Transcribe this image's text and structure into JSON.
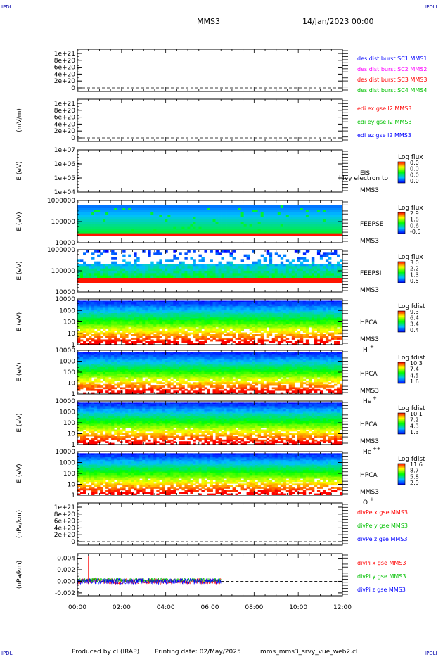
{
  "corner_marks": [
    "IPDLI",
    "IPDLI",
    "IPDLI",
    "IPDLI"
  ],
  "header": {
    "spacecraft": "MMS3",
    "date": "14/Jan/2023 00:00"
  },
  "footer": {
    "produced": "Produced by cl (IRAP)",
    "printing": "Printing date: 02/May/2025",
    "script": "mms_mms3_srvy_vue_web2.cl"
  },
  "time_axis": {
    "labels": [
      "00:00",
      "02:00",
      "04:00",
      "06:00",
      "08:00",
      "10:00",
      "12:00"
    ],
    "range_hours": [
      0,
      12
    ],
    "data_end_hours": 6.5
  },
  "colors": {
    "red": "#ff0000",
    "green": "#00c000",
    "blue": "#0000ff",
    "magenta": "#ff00ff",
    "dashed": "#000000"
  },
  "chart_data": [
    {
      "type": "line",
      "id": "des-dist",
      "ylabel": "",
      "yticks": [
        "1e+21",
        "8e+20",
        "6e+20",
        "4e+20",
        "2e+20",
        "0"
      ],
      "series": [
        {
          "name": "des dist burst SC1 MMS1",
          "color": "#0000ff"
        },
        {
          "name": "des dist burst SC2 MMS2",
          "color": "#ff00ff"
        },
        {
          "name": "des dist burst SC3 MMS3",
          "color": "#ff0000"
        },
        {
          "name": "des dist burst SC4 MMS4",
          "color": "#00c000"
        }
      ],
      "values": []
    },
    {
      "type": "line",
      "id": "edi-e",
      "ylabel": "(mV/m)",
      "yticks": [
        "1e+21",
        "8e+20",
        "6e+20",
        "4e+20",
        "2e+20",
        "0"
      ],
      "series": [
        {
          "name": "edi ex gse l2 MMS3",
          "color": "#ff0000"
        },
        {
          "name": "edi ey gse l2 MMS3",
          "color": "#00c000"
        },
        {
          "name": "edi ez gse l2 MMS3",
          "color": "#0000ff"
        }
      ],
      "values": []
    },
    {
      "type": "heatmap",
      "id": "eis",
      "ylabel": "E (eV)",
      "yticks": [
        "1e+07",
        "1e+06",
        "1e+05",
        "1e+04"
      ],
      "instrument": "EIS",
      "extra": "l lvy electron to",
      "spacecraft": "MMS3",
      "colorbar": {
        "title": "Log flux",
        "ticks": [
          "0.0",
          "0.0",
          "0.0",
          "0.0"
        ]
      }
    },
    {
      "type": "heatmap",
      "id": "feepse",
      "ylabel": "E (eV)",
      "yticks": [
        "1000000",
        "100000",
        "10000"
      ],
      "instrument": "FEEPSE",
      "spacecraft": "MMS3",
      "colorbar": {
        "title": "Log flux",
        "ticks": [
          "2.9",
          "1.8",
          "0.6",
          "-0.5"
        ]
      }
    },
    {
      "type": "heatmap",
      "id": "feepsi",
      "ylabel": "E (eV)",
      "yticks": [
        "1000000",
        "100000",
        "10000"
      ],
      "instrument": "FEEPSI",
      "spacecraft": "MMS3",
      "colorbar": {
        "title": "Log flux",
        "ticks": [
          "3.0",
          "2.2",
          "1.3",
          "0.5"
        ]
      }
    },
    {
      "type": "heatmap",
      "id": "hpca-h",
      "ylabel": "E (eV)",
      "yticks": [
        "10000",
        "1000",
        "100",
        "10",
        "1"
      ],
      "instrument": "HPCA",
      "spacecraft": "MMS3",
      "species": "H",
      "charge": "+",
      "colorbar": {
        "title": "Log fdist",
        "ticks": [
          "9.3",
          "6.4",
          "3.4",
          "0.4"
        ]
      }
    },
    {
      "type": "heatmap",
      "id": "hpca-he",
      "ylabel": "E (eV)",
      "yticks": [
        "10000",
        "1000",
        "100",
        "10",
        "1"
      ],
      "instrument": "HPCA",
      "spacecraft": "MMS3",
      "species": "He",
      "charge": "+",
      "colorbar": {
        "title": "Log fdist",
        "ticks": [
          "10.3",
          "7.4",
          "4.5",
          "1.6"
        ]
      }
    },
    {
      "type": "heatmap",
      "id": "hpca-hepp",
      "ylabel": "E (eV)",
      "yticks": [
        "10000",
        "1000",
        "100",
        "10",
        "1"
      ],
      "instrument": "HPCA",
      "spacecraft": "MMS3",
      "species": "He",
      "charge": "++",
      "colorbar": {
        "title": "Log fdist",
        "ticks": [
          "10.1",
          "7.2",
          "4.3",
          "1.3"
        ]
      }
    },
    {
      "type": "heatmap",
      "id": "hpca-o",
      "ylabel": "E (eV)",
      "yticks": [
        "10000",
        "1000",
        "100",
        "10",
        "1"
      ],
      "instrument": "HPCA",
      "spacecraft": "MMS3",
      "species": "O",
      "charge": "+",
      "colorbar": {
        "title": "Log fdist",
        "ticks": [
          "11.6",
          "8.7",
          "5.8",
          "2.9"
        ]
      }
    },
    {
      "type": "line",
      "id": "divpe",
      "ylabel": "(nPa/km)",
      "yticks": [
        "1e+21",
        "8e+20",
        "6e+20",
        "4e+20",
        "2e+20",
        "0"
      ],
      "series": [
        {
          "name": "divPe x gse MMS3",
          "color": "#ff0000"
        },
        {
          "name": "divPe y gse MMS3",
          "color": "#00c000"
        },
        {
          "name": "divPe z gse MMS3",
          "color": "#0000ff"
        }
      ],
      "values": []
    },
    {
      "type": "line",
      "id": "divpi",
      "ylabel": "(nPa/km)",
      "yticks": [
        "0.004",
        "0.002",
        "0.000",
        "-0.002"
      ],
      "ylim": [
        -0.0025,
        0.0048
      ],
      "series": [
        {
          "name": "divPi x gse MMS3",
          "color": "#ff0000",
          "spike": {
            "t_hours": 0.5,
            "value": 0.0043
          }
        },
        {
          "name": "divPi y gse MMS3",
          "color": "#00c000"
        },
        {
          "name": "divPi z gse MMS3",
          "color": "#0000ff"
        }
      ],
      "approx_range": {
        "t_hours": [
          0,
          6.5
        ],
        "values": [
          -0.0007,
          0.0008
        ]
      }
    }
  ]
}
